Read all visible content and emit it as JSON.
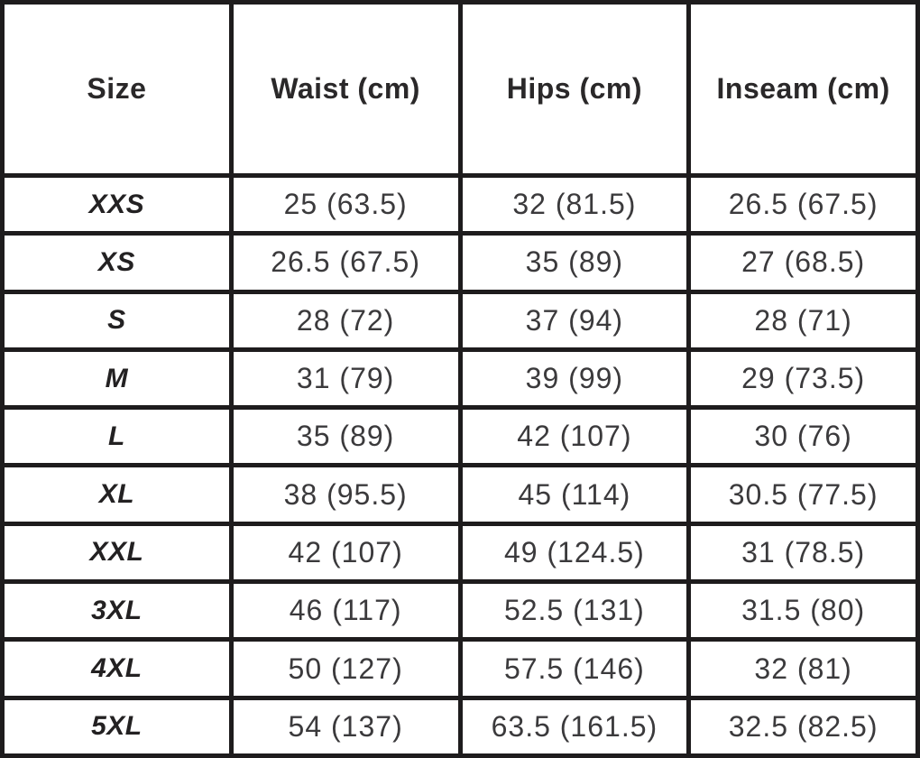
{
  "chart_data": {
    "type": "table",
    "columns": [
      "Size",
      "Waist (cm)",
      "Hips (cm)",
      "Inseam (cm)"
    ],
    "rows": [
      [
        "XXS",
        "25 (63.5)",
        "32 (81.5)",
        "26.5 (67.5)"
      ],
      [
        "XS",
        "26.5 (67.5)",
        "35 (89)",
        "27 (68.5)"
      ],
      [
        "S",
        "28 (72)",
        "37 (94)",
        "28 (71)"
      ],
      [
        "M",
        "31 (79)",
        "39 (99)",
        "29 (73.5)"
      ],
      [
        "L",
        "35 (89)",
        "42 (107)",
        "30 (76)"
      ],
      [
        "XL",
        "38 (95.5)",
        "45 (114)",
        "30.5 (77.5)"
      ],
      [
        "XXL",
        "42 (107)",
        "49 (124.5)",
        "31 (78.5)"
      ],
      [
        "3XL",
        "46 (117)",
        "52.5 (131)",
        "31.5 (80)"
      ],
      [
        "4XL",
        "50 (127)",
        "57.5 (146)",
        "32 (81)"
      ],
      [
        "5XL",
        "54 (137)",
        "63.5 (161.5)",
        "32.5 (82.5)"
      ]
    ],
    "layout": {
      "grid": true,
      "header_row": true,
      "border_color": "#1e1c1d",
      "background": "#ffffff",
      "header_text_color": "#2a2829",
      "cell_text_color": "#3b3a3c"
    }
  }
}
